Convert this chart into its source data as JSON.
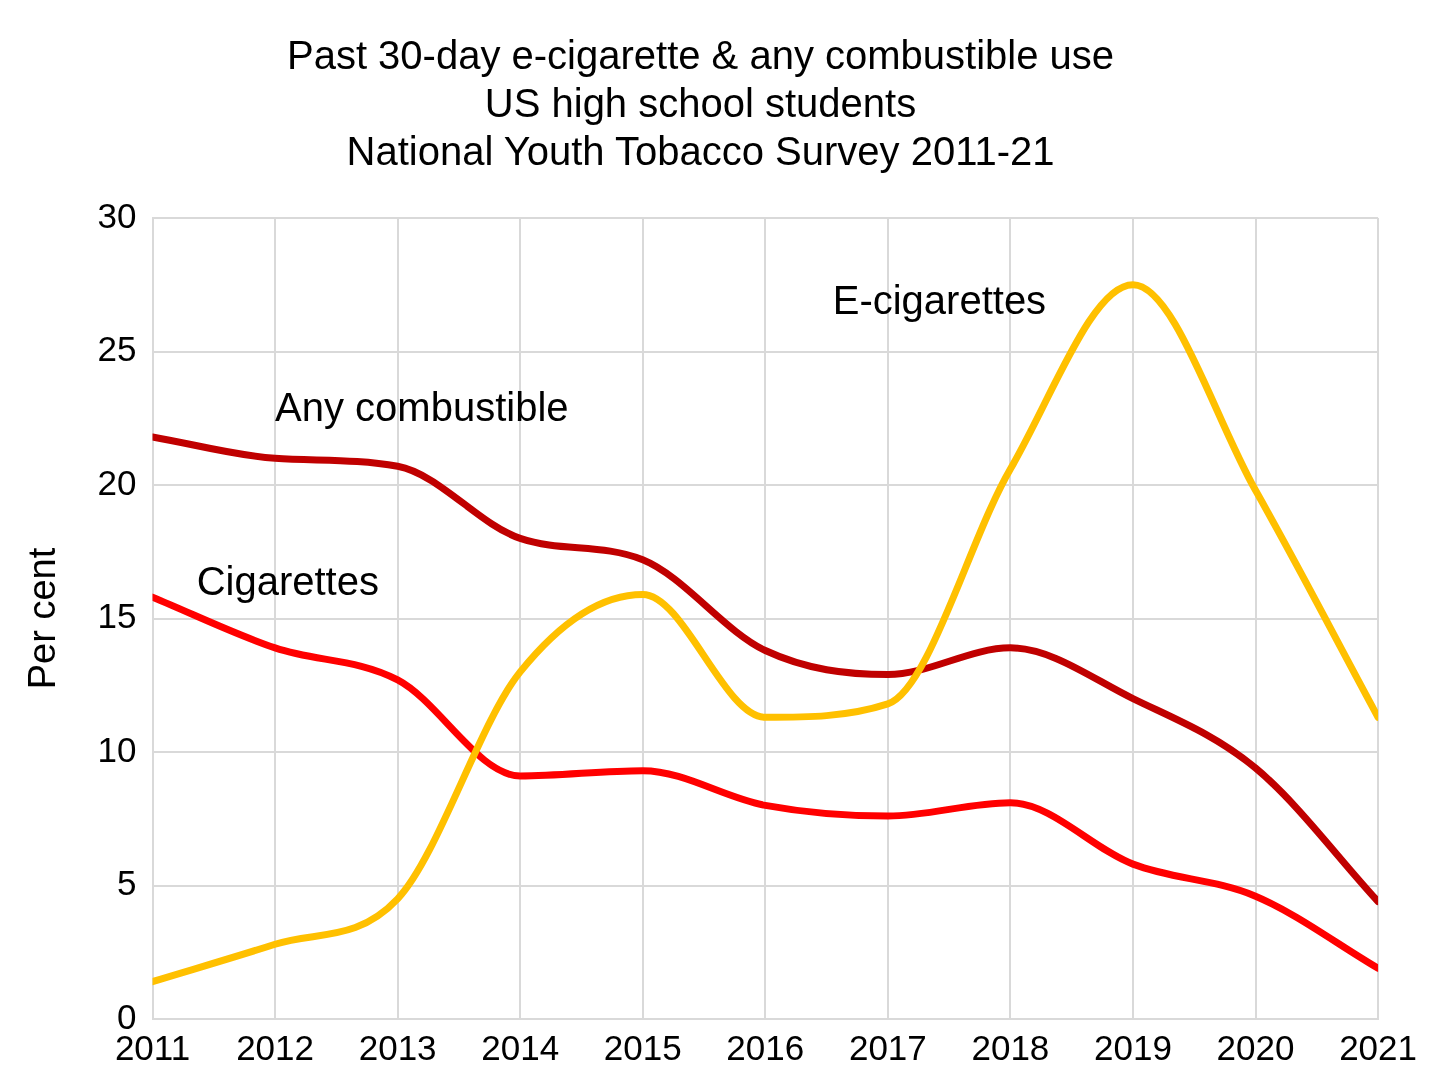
{
  "chart_data": {
    "type": "line",
    "title": [
      "Past 30-day e-cigarette & any combustible use",
      "US high school students",
      "National Youth Tobacco Survey 2011-21"
    ],
    "ylabel": "Per cent",
    "x": [
      2011,
      2012,
      2013,
      2014,
      2015,
      2016,
      2017,
      2018,
      2019,
      2020,
      2021
    ],
    "xlim": [
      2011,
      2021
    ],
    "xticks": [
      2011,
      2012,
      2013,
      2014,
      2015,
      2016,
      2017,
      2018,
      2019,
      2020,
      2021
    ],
    "ylim": [
      0,
      30
    ],
    "yticks": [
      0,
      5,
      10,
      15,
      20,
      25,
      30
    ],
    "grid": true,
    "legend": false,
    "marker": "none",
    "line_style": "solid",
    "series": [
      {
        "name": "E-cigarettes",
        "color": "#ffc000",
        "values": [
          1.4,
          2.8,
          4.5,
          13.0,
          15.9,
          11.3,
          11.8,
          20.6,
          27.5,
          19.8,
          11.3
        ]
      },
      {
        "name": "Any combustible",
        "color": "#c00000",
        "values": [
          21.8,
          21.0,
          20.7,
          18.0,
          17.2,
          13.8,
          12.9,
          13.9,
          12.0,
          9.4,
          4.4
        ]
      },
      {
        "name": "Cigarettes",
        "color": "#ff0000",
        "values": [
          15.8,
          13.9,
          12.7,
          9.1,
          9.3,
          8.0,
          7.6,
          8.1,
          5.8,
          4.6,
          1.9
        ]
      }
    ]
  }
}
